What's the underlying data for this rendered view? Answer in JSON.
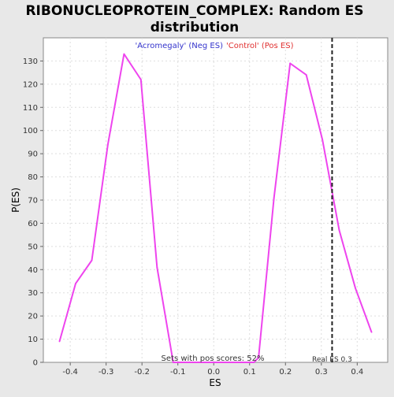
{
  "chart_data": {
    "type": "line",
    "title_lines": [
      "RIBONUCLEOPROTEIN_COMPLEX: Random ES",
      "distribution"
    ],
    "xlabel": "ES",
    "ylabel": "P(ES)",
    "legend": {
      "neg_label": "'Acromegaly' (Neg ES)",
      "pos_label": "'Control' (Pos ES)",
      "neg_color": "#3333cc",
      "pos_color": "#e03030",
      "placement": "top-center"
    },
    "xlim": [
      -0.475,
      0.485
    ],
    "ylim": [
      0,
      140
    ],
    "x_ticks": [
      "-0.4",
      "-0.3",
      "-0.2",
      "-0.1",
      "0.0",
      "0.1",
      "0.2",
      "0.3",
      "0.4"
    ],
    "x_tick_values": [
      -0.4,
      -0.3,
      -0.2,
      -0.1,
      0.0,
      0.1,
      0.2,
      0.3,
      0.4
    ],
    "y_ticks": [
      "0",
      "10",
      "20",
      "30",
      "40",
      "50",
      "60",
      "70",
      "80",
      "90",
      "100",
      "110",
      "120",
      "130"
    ],
    "y_tick_values": [
      0,
      10,
      20,
      30,
      40,
      50,
      60,
      70,
      80,
      90,
      100,
      110,
      120,
      130
    ],
    "grid": true,
    "series": [
      {
        "color": "#ee44ee",
        "x": [
          -0.43,
          -0.385,
          -0.34,
          -0.295,
          -0.25,
          -0.203,
          -0.158,
          -0.113,
          -0.068,
          -0.023,
          0.022,
          0.067,
          0.112,
          0.125,
          0.168,
          0.213,
          0.258,
          0.303,
          0.35,
          0.395,
          0.44
        ],
        "y": [
          9,
          34,
          44,
          94,
          133,
          122,
          41,
          0,
          0,
          0,
          0,
          0,
          0,
          2,
          71,
          129,
          124,
          96,
          57,
          32,
          13
        ]
      }
    ],
    "real_es": 0.33,
    "real_es_label": "Real ES 0.3",
    "annotation": "Sets with pos scores: 52%"
  }
}
